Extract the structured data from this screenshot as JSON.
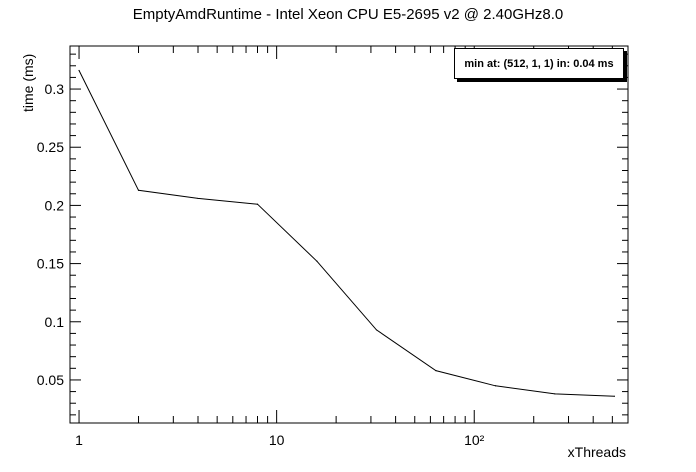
{
  "chart_data": {
    "type": "line",
    "title": "EmptyAmdRuntime - Intel Xeon CPU E5-2695 v2 @ 2.40GHz8.0",
    "xlabel": "xThreads",
    "ylabel": "time (ms)",
    "x_scale": "log",
    "xlim": [
      0.9,
      600
    ],
    "ylim": [
      0.013,
      0.337
    ],
    "grid": false,
    "legend": "none",
    "annotation": "min at: (512, 1, 1) in: 0.04 ms",
    "x_tick_labels": [
      "1",
      "10",
      "10²"
    ],
    "y_tick_labels": [
      "0.05",
      "0.1",
      "0.15",
      "0.2",
      "0.25",
      "0.3"
    ],
    "series": [
      {
        "x": [
          1,
          2,
          4,
          8,
          16,
          32,
          64,
          128,
          256,
          512
        ],
        "values": [
          0.316,
          0.213,
          0.206,
          0.201,
          0.152,
          0.093,
          0.058,
          0.045,
          0.038,
          0.036
        ]
      }
    ],
    "line_color": "#000000"
  }
}
